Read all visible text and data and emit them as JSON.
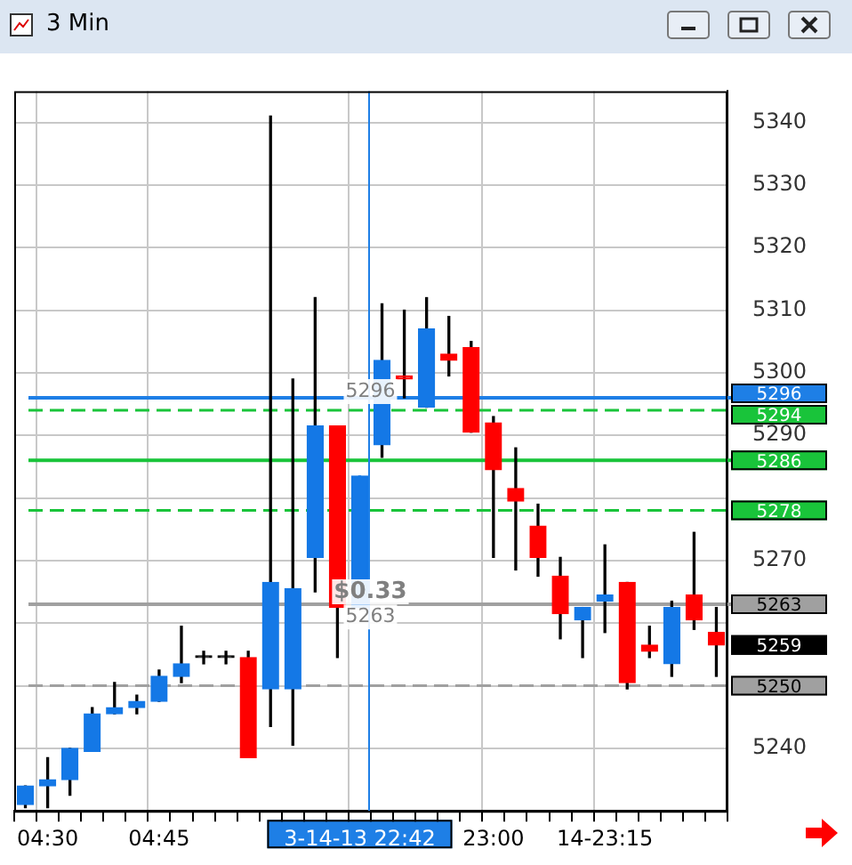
{
  "chart_data": {
    "type": "candlestick",
    "title": "3 Min",
    "categories": [
      null,
      "04:30",
      null,
      null,
      null,
      null,
      "04:45",
      null,
      null,
      null,
      null,
      null,
      null,
      null,
      null,
      "3-14-13 22:42",
      null,
      null,
      null,
      null,
      null,
      "23:00",
      null,
      null,
      null,
      null,
      "14-23:15",
      null,
      null,
      null,
      null,
      null
    ],
    "ohlc": [
      [
        5231,
        5234,
        5230.5,
        5234
      ],
      [
        5234,
        5238.5,
        5230.5,
        5235
      ],
      [
        5235,
        5240,
        5232.5,
        5240
      ],
      [
        5239.5,
        5246.5,
        5239.5,
        5245.5
      ],
      [
        5245.5,
        5250.5,
        5245.5,
        5246.5
      ],
      [
        5246.5,
        5248.5,
        5245.5,
        5247.5
      ],
      [
        5247.5,
        5252.5,
        5247.5,
        5251.5
      ],
      [
        5251.5,
        5259.5,
        5250.5,
        5253.5
      ],
      [
        5254.5,
        5255.5,
        5253.5,
        5254.5
      ],
      [
        5254.5,
        5255.5,
        5253.5,
        5254.5
      ],
      [
        5254.5,
        5255.5,
        5238.5,
        5238.5
      ],
      [
        5249.5,
        5341,
        5243.5,
        5266.5
      ],
      [
        5249.5,
        5299,
        5240.5,
        5265.5
      ],
      [
        5270.5,
        5312,
        5265,
        5291.5
      ],
      [
        5291.5,
        5291.5,
        5254.5,
        5262.5
      ],
      [
        5262.5,
        5283.5,
        5262.5,
        5283.5
      ],
      [
        5288.5,
        5311,
        5286.5,
        5302
      ],
      [
        5299.5,
        5310,
        5296,
        5299
      ],
      [
        5294.5,
        5312,
        5294.5,
        5307
      ],
      [
        5303,
        5309,
        5299.5,
        5302
      ],
      [
        5304,
        5305,
        5290.5,
        5290.5
      ],
      [
        5292,
        5293,
        5270.5,
        5284.5
      ],
      [
        5281.5,
        5288,
        5268.5,
        5279.5
      ],
      [
        5275.5,
        5279,
        5267.5,
        5270.5
      ],
      [
        5267.5,
        5270.5,
        5257.5,
        5261.5
      ],
      [
        5260.5,
        5262.5,
        5254.5,
        5262.5
      ],
      [
        5263.5,
        5272.5,
        5258.5,
        5264.5
      ],
      [
        5266.5,
        5266.5,
        5249.5,
        5250.5
      ],
      [
        5256.5,
        5259.5,
        5254.5,
        5255.5
      ],
      [
        5253.5,
        5263.5,
        5251.5,
        5262.5
      ],
      [
        5264.5,
        5274.5,
        5259,
        5260.5
      ],
      [
        5258.5,
        5262.5,
        5251.5,
        5256.5
      ]
    ],
    "colors": [
      "#1478e6",
      "#1478e6",
      "#1478e6",
      "#1478e6",
      "#1478e6",
      "#1478e6",
      "#1478e6",
      "#1478e6",
      "#000000",
      "#000000",
      "#ff0000",
      "#1478e6",
      "#1478e6",
      "#1478e6",
      "#ff0000",
      "#1478e6",
      "#1478e6",
      "#ff0000",
      "#1478e6",
      "#ff0000",
      "#ff0000",
      "#ff0000",
      "#ff0000",
      "#ff0000",
      "#ff0000",
      "#1478e6",
      "#1478e6",
      "#ff0000",
      "#ff0000",
      "#1478e6",
      "#ff0000",
      "#ff0000"
    ],
    "ylim": [
      5230,
      5345
    ],
    "yticks": [
      5240,
      {
        "value": 5250,
        "label": null
      },
      {
        "value": 5260,
        "label": null
      },
      5270,
      {
        "value": 5280,
        "label": null
      },
      5290,
      5300,
      5310,
      5320,
      5330,
      5340
    ],
    "grid": true,
    "legend": false,
    "ref_lines": [
      {
        "axis": "y",
        "value": 5296,
        "label": "5296",
        "color": "#1e7fe6",
        "line_style": "solid"
      },
      {
        "axis": "y",
        "value": 5294,
        "label": "5294",
        "color": "#19c43a",
        "line_style": "dashed"
      },
      {
        "axis": "y",
        "value": 5286,
        "label": "5286",
        "color": "#19c43a",
        "line_style": "solid"
      },
      {
        "axis": "y",
        "value": 5278,
        "label": "5278",
        "color": "#19c43a",
        "line_style": "dashed"
      },
      {
        "axis": "y",
        "value": 5263,
        "label": "5263",
        "color": "#a0a0a0",
        "line_style": "solid"
      },
      {
        "axis": "y",
        "value": 5250,
        "label": "5250",
        "color": "#a0a0a0",
        "line_style": "dashed"
      },
      {
        "axis": "x",
        "value": "3-14-13 22:42",
        "color": "#1e7fe6",
        "line_style": "solid"
      }
    ],
    "annotations": [
      {
        "text": "5296",
        "x": "3-14-13 22:42",
        "y": 5297
      },
      {
        "text": "$0.33",
        "x": "3-14-13 22:42",
        "y": 5265
      },
      {
        "text": "5263",
        "x": "3-14-13 22:42",
        "y": 5261
      },
      "5259"
    ]
  }
}
